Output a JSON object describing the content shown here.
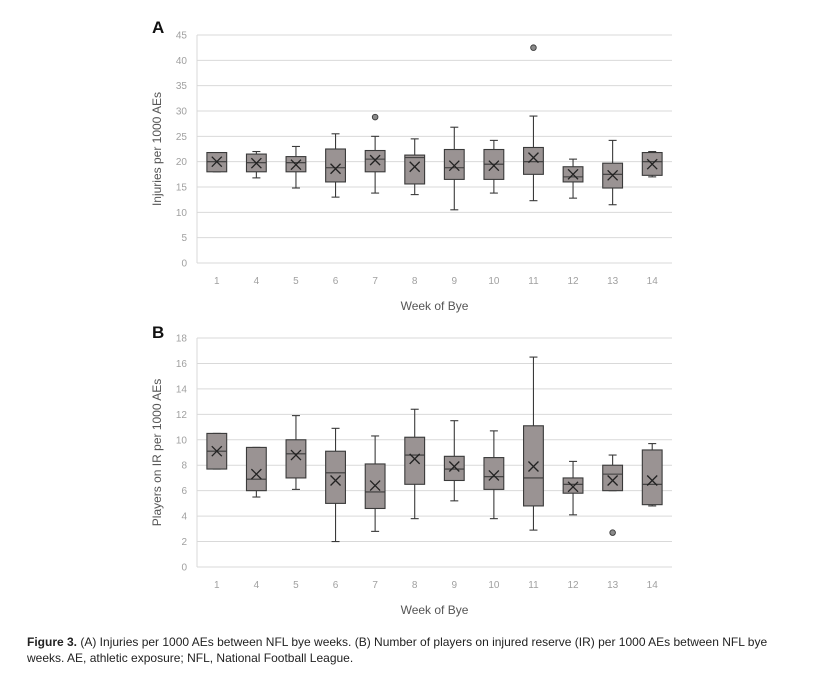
{
  "caption": {
    "label": "Figure 3.",
    "text": " (A) Injuries per 1000 AEs between NFL bye weeks. (B) Number of players on injured reserve (IR) per 1000 AEs between NFL bye weeks. AE, athletic exposure; NFL, National Football League."
  },
  "colors": {
    "box_fill": "#9a9393",
    "box_stroke": "#3a3a3a",
    "grid": "#d9d9d9",
    "outlier_fill": "#8a8a8a"
  },
  "chart_data": [
    {
      "type": "box",
      "panel": "A",
      "xlabel": "Week of Bye",
      "ylabel": "Injuries per 1000 AEs",
      "ylim": [
        0,
        45
      ],
      "ytick_step": 5,
      "grid": true,
      "categories": [
        "1",
        "4",
        "5",
        "6",
        "7",
        "8",
        "9",
        "10",
        "11",
        "12",
        "13",
        "14"
      ],
      "boxes": [
        {
          "min": 18.0,
          "q1": 18.0,
          "median": 20.0,
          "q3": 21.8,
          "max": 21.8,
          "mean": 20.0,
          "outliers": []
        },
        {
          "min": 16.8,
          "q1": 18.0,
          "median": 19.8,
          "q3": 21.5,
          "max": 22.0,
          "mean": 19.7,
          "outliers": []
        },
        {
          "min": 14.8,
          "q1": 18.0,
          "median": 19.8,
          "q3": 21.0,
          "max": 23.0,
          "mean": 19.4,
          "outliers": []
        },
        {
          "min": 13.0,
          "q1": 16.0,
          "median": 18.8,
          "q3": 22.5,
          "max": 25.5,
          "mean": 18.6,
          "outliers": []
        },
        {
          "min": 13.8,
          "q1": 18.0,
          "median": 20.5,
          "q3": 22.2,
          "max": 25.0,
          "mean": 20.3,
          "outliers": [
            28.8
          ]
        },
        {
          "min": 13.5,
          "q1": 15.6,
          "median": 20.8,
          "q3": 21.3,
          "max": 24.5,
          "mean": 19.0,
          "outliers": []
        },
        {
          "min": 10.5,
          "q1": 16.5,
          "median": 18.8,
          "q3": 22.4,
          "max": 26.8,
          "mean": 19.2,
          "outliers": []
        },
        {
          "min": 13.8,
          "q1": 16.5,
          "median": 19.5,
          "q3": 22.4,
          "max": 24.2,
          "mean": 19.2,
          "outliers": []
        },
        {
          "min": 12.3,
          "q1": 17.5,
          "median": 20.0,
          "q3": 22.8,
          "max": 29.0,
          "mean": 20.8,
          "outliers": [
            42.5
          ]
        },
        {
          "min": 12.8,
          "q1": 16.0,
          "median": 17.0,
          "q3": 19.0,
          "max": 20.5,
          "mean": 17.5,
          "outliers": []
        },
        {
          "min": 11.5,
          "q1": 14.8,
          "median": 17.5,
          "q3": 19.7,
          "max": 24.2,
          "mean": 17.3,
          "outliers": []
        },
        {
          "min": 17.0,
          "q1": 17.3,
          "median": 20.0,
          "q3": 21.8,
          "max": 22.0,
          "mean": 19.5,
          "outliers": []
        }
      ]
    },
    {
      "type": "box",
      "panel": "B",
      "xlabel": "Week of Bye",
      "ylabel": "Players on IR per 1000 AEs",
      "ylim": [
        0,
        18
      ],
      "ytick_step": 2,
      "grid": true,
      "categories": [
        "1",
        "4",
        "5",
        "6",
        "7",
        "8",
        "9",
        "10",
        "11",
        "12",
        "13",
        "14"
      ],
      "boxes": [
        {
          "min": 7.7,
          "q1": 7.7,
          "median": 9.1,
          "q3": 10.5,
          "max": 10.5,
          "mean": 9.1,
          "outliers": []
        },
        {
          "min": 5.5,
          "q1": 6.0,
          "median": 6.9,
          "q3": 9.4,
          "max": 9.4,
          "mean": 7.3,
          "outliers": []
        },
        {
          "min": 6.1,
          "q1": 7.0,
          "median": 8.9,
          "q3": 10.0,
          "max": 11.9,
          "mean": 8.8,
          "outliers": []
        },
        {
          "min": 2.0,
          "q1": 5.0,
          "median": 7.4,
          "q3": 9.1,
          "max": 10.9,
          "mean": 6.8,
          "outliers": []
        },
        {
          "min": 2.8,
          "q1": 4.6,
          "median": 5.9,
          "q3": 8.1,
          "max": 10.3,
          "mean": 6.4,
          "outliers": []
        },
        {
          "min": 3.8,
          "q1": 6.5,
          "median": 8.8,
          "q3": 10.2,
          "max": 12.4,
          "mean": 8.5,
          "outliers": []
        },
        {
          "min": 5.2,
          "q1": 6.8,
          "median": 7.7,
          "q3": 8.7,
          "max": 11.5,
          "mean": 7.9,
          "outliers": []
        },
        {
          "min": 3.8,
          "q1": 6.1,
          "median": 7.1,
          "q3": 8.6,
          "max": 10.7,
          "mean": 7.2,
          "outliers": []
        },
        {
          "min": 2.9,
          "q1": 4.8,
          "median": 7.0,
          "q3": 11.1,
          "max": 16.5,
          "mean": 7.9,
          "outliers": []
        },
        {
          "min": 4.1,
          "q1": 5.8,
          "median": 6.5,
          "q3": 7.0,
          "max": 8.3,
          "mean": 6.3,
          "outliers": []
        },
        {
          "min": 6.0,
          "q1": 6.0,
          "median": 7.3,
          "q3": 8.0,
          "max": 8.8,
          "mean": 6.8,
          "outliers": [
            2.7
          ]
        },
        {
          "min": 4.8,
          "q1": 4.9,
          "median": 6.5,
          "q3": 9.2,
          "max": 9.7,
          "mean": 6.8,
          "outliers": []
        }
      ]
    }
  ]
}
